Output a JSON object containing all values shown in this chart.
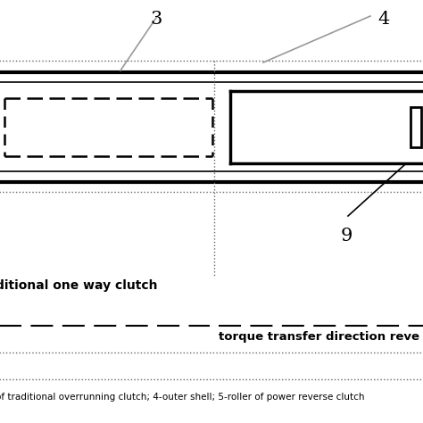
{
  "bg_color": "#ffffff",
  "fig_width": 4.74,
  "fig_height": 4.74,
  "dpi": 100,
  "label_3": "3",
  "label_4": "4",
  "label_9": "9",
  "line_color": "#000000",
  "gray_color": "#999999",
  "dotted_color": "#666666",
  "text_left_label": "ditional one way clutch",
  "text_right_label": "torque transfer direction reve",
  "text_bottom": "of traditional overrunning clutch; 4-outer shell; 5-roller of power reverse clutch"
}
